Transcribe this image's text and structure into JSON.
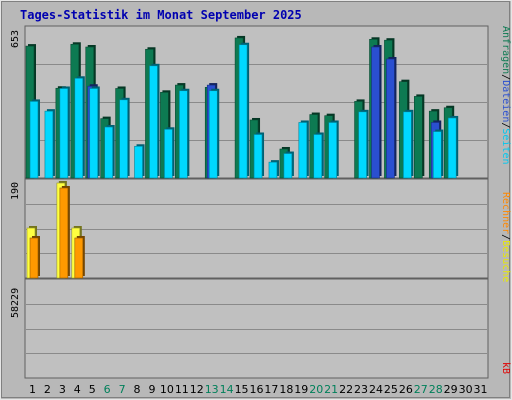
{
  "chart_data": [
    {
      "type": "bar",
      "title": "Tages-Statistik im Monat September 2025",
      "ymax_label": "653",
      "ymax": 653,
      "categories": [
        "1",
        "2",
        "3",
        "4",
        "5",
        "6",
        "7",
        "8",
        "9",
        "10",
        "11",
        "12",
        "13",
        "14",
        "15",
        "16",
        "17",
        "18",
        "19",
        "20",
        "21",
        "22",
        "23",
        "24",
        "25",
        "26",
        "27",
        "28",
        "29",
        "30",
        "31"
      ],
      "weekend_days": [
        "6",
        "7",
        "13",
        "14",
        "20",
        "21",
        "27",
        "28"
      ],
      "right_labels": [
        "Anfragen",
        "/",
        "Dateien",
        "/",
        "Seiten"
      ],
      "series": [
        {
          "name": "Anfragen",
          "color": "#0d7a52",
          "values": [
            582,
            0,
            396,
            590,
            578,
            262,
            395,
            0,
            568,
            378,
            410,
            0,
            400,
            0,
            618,
            256,
            0,
            128,
            0,
            280,
            275,
            0,
            338,
            612,
            608,
            425,
            360,
            295,
            310,
            0,
            0
          ]
        },
        {
          "name": "Dateien",
          "color": "#2a4fd0",
          "values": [
            0,
            0,
            0,
            0,
            405,
            0,
            0,
            0,
            0,
            0,
            0,
            0,
            410,
            0,
            0,
            0,
            0,
            0,
            0,
            0,
            0,
            0,
            0,
            578,
            525,
            0,
            0,
            245,
            0,
            0,
            0
          ]
        },
        {
          "name": "Seiten",
          "color": "#00d8ff",
          "values": [
            338,
            295,
            395,
            440,
            395,
            225,
            345,
            140,
            495,
            215,
            385,
            0,
            385,
            0,
            588,
            192,
            70,
            108,
            245,
            192,
            245,
            0,
            292,
            0,
            0,
            292,
            0,
            205,
            265,
            0,
            0
          ]
        }
      ]
    },
    {
      "type": "bar",
      "ymax_label": "190",
      "ymax": 190,
      "right_labels": [
        "Rechner",
        "/",
        "Besuche"
      ],
      "series": [
        {
          "name": "Besuche",
          "color": "#ffff40",
          "values": [
            100,
            0,
            190,
            100,
            0,
            0,
            0,
            0,
            0,
            0,
            0,
            0,
            0,
            0,
            0,
            0,
            0,
            0,
            0,
            0,
            0,
            0,
            0,
            0,
            0,
            0,
            0,
            0,
            0,
            0,
            0
          ]
        },
        {
          "name": "Rechner",
          "color": "#ff9900",
          "values": [
            80,
            0,
            180,
            80,
            0,
            0,
            0,
            0,
            0,
            0,
            0,
            0,
            0,
            0,
            0,
            0,
            0,
            0,
            0,
            0,
            0,
            0,
            0,
            0,
            0,
            0,
            0,
            0,
            0,
            0,
            0
          ]
        }
      ]
    },
    {
      "type": "bar",
      "ymax_label": "58229",
      "ymax": 58229,
      "right_labels": [
        "kB"
      ],
      "series": [
        {
          "name": "kB",
          "color": "#ff2a2a",
          "values": [
            0,
            0,
            0,
            0,
            0,
            0,
            0,
            0,
            0,
            0,
            0,
            0,
            0,
            0,
            0,
            0,
            0,
            0,
            0,
            0,
            0,
            0,
            0,
            0,
            0,
            0,
            0,
            0,
            0,
            0,
            0
          ]
        }
      ]
    }
  ]
}
